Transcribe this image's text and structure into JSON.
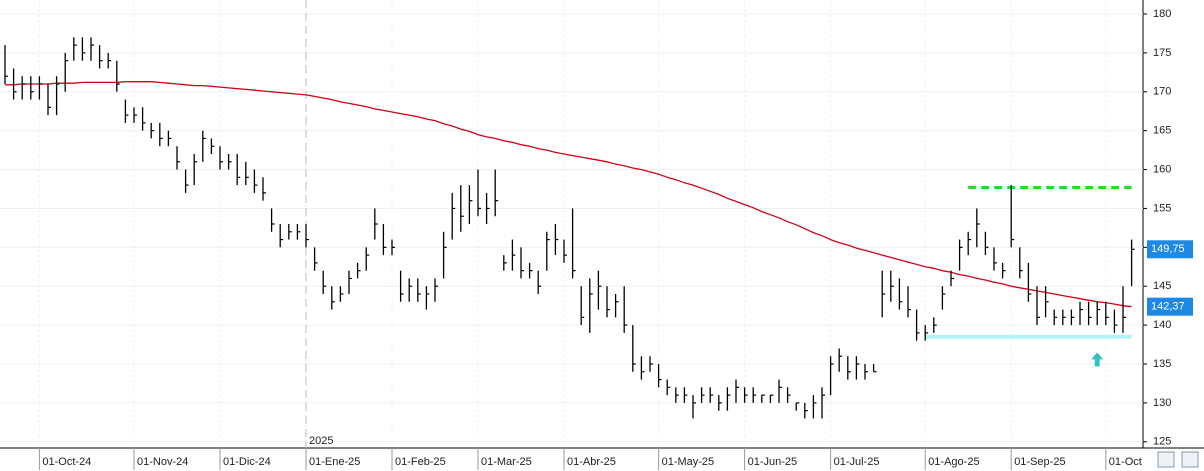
{
  "chart_data": {
    "type": "ohlc",
    "categories": [
      null,
      null,
      null,
      null,
      "01-Oct-24",
      null,
      null,
      null,
      null,
      null,
      null,
      null,
      null,
      null,
      null,
      "01-Nov-24",
      null,
      null,
      null,
      null,
      null,
      null,
      null,
      null,
      null,
      "01-Dic-24",
      null,
      null,
      null,
      null,
      null,
      null,
      null,
      null,
      null,
      "01-Ene-25",
      null,
      null,
      null,
      null,
      null,
      null,
      null,
      null,
      null,
      "01-Feb-25",
      null,
      null,
      null,
      null,
      null,
      null,
      null,
      null,
      null,
      "01-Mar-25",
      null,
      null,
      null,
      null,
      null,
      null,
      null,
      null,
      null,
      "01-Abr-25",
      null,
      null,
      null,
      null,
      null,
      null,
      null,
      null,
      null,
      null,
      "01-May-25",
      null,
      null,
      null,
      null,
      null,
      null,
      null,
      null,
      null,
      "01-Jun-25",
      null,
      null,
      null,
      null,
      null,
      null,
      null,
      null,
      null,
      "01-Jul-25",
      null,
      null,
      null,
      null,
      null,
      null,
      null,
      null,
      null,
      null,
      "01-Ago-25",
      null,
      null,
      null,
      null,
      null,
      null,
      null,
      null,
      null,
      "01-Sep-25",
      null,
      null,
      null,
      null,
      null,
      null,
      null,
      null,
      null,
      null,
      "01-Oct",
      null,
      null,
      null
    ],
    "bars": {
      "color": "#000000",
      "high": [
        176,
        173,
        172,
        172,
        172,
        171,
        172,
        175,
        177,
        177,
        177,
        176,
        175,
        174,
        169,
        168,
        168,
        166,
        166,
        165,
        163,
        160,
        162,
        165,
        164,
        163,
        162,
        162,
        161,
        160,
        159,
        155,
        153,
        153,
        153,
        153,
        150,
        147,
        145,
        145,
        147,
        148,
        150,
        155,
        153,
        151,
        147,
        146,
        146,
        145,
        146,
        152,
        157,
        158,
        158,
        160,
        157,
        160,
        149,
        151,
        150,
        148,
        147,
        152,
        153,
        151,
        155,
        145,
        146,
        147,
        145,
        144,
        145,
        140,
        136,
        136,
        135,
        133,
        132,
        132,
        131,
        132,
        132,
        131,
        132,
        133,
        132,
        132,
        131,
        131,
        133,
        132,
        130,
        130,
        131,
        132,
        136,
        137,
        136,
        136,
        135,
        135,
        147,
        147,
        146,
        145,
        142,
        140,
        141,
        145,
        147,
        151,
        152,
        155,
        152,
        150,
        148,
        158,
        150,
        148,
        145,
        145,
        142,
        142,
        142,
        143,
        143,
        143,
        143,
        142,
        145,
        151
      ],
      "low": [
        171,
        169,
        169,
        169,
        169,
        167,
        167,
        170,
        174,
        174,
        174,
        173,
        173,
        170,
        166,
        166,
        165,
        164,
        163,
        163,
        160,
        157,
        158,
        161,
        162,
        160,
        160,
        158,
        158,
        157,
        156,
        152,
        150,
        151,
        151,
        150,
        147,
        144,
        142,
        143,
        144,
        146,
        147,
        151,
        149,
        149,
        143,
        143,
        143,
        142,
        143,
        146,
        151,
        152,
        153,
        154,
        153,
        154,
        147,
        147,
        146,
        146,
        144,
        147,
        149,
        148,
        146,
        140,
        139,
        142,
        141,
        141,
        139,
        134,
        133,
        134,
        132,
        131,
        130,
        130,
        128,
        130,
        130,
        129,
        129,
        130,
        130,
        130,
        130,
        130,
        130,
        130,
        129,
        128,
        128,
        128,
        131,
        134,
        133,
        133,
        133,
        134,
        141,
        143,
        142,
        141,
        138,
        138,
        139,
        142,
        145,
        147,
        149,
        150,
        149,
        147,
        146,
        150,
        146,
        143,
        140,
        141,
        140,
        140,
        140,
        140,
        140,
        140,
        140,
        139,
        139,
        145
      ],
      "close": [
        172,
        170,
        171,
        170,
        171,
        168,
        171,
        174,
        176,
        175,
        176,
        174,
        174,
        171,
        167,
        167,
        166,
        165,
        164,
        164,
        161,
        158,
        161,
        164,
        163,
        161,
        161,
        159,
        159,
        158,
        157,
        153,
        151,
        152,
        152,
        151,
        148,
        145,
        143,
        144,
        146,
        147,
        149,
        153,
        150,
        150,
        144,
        145,
        144,
        144,
        145,
        150,
        155,
        154,
        156,
        155,
        155,
        156,
        148,
        149,
        147,
        147,
        145,
        151,
        151,
        149,
        147,
        141,
        144,
        145,
        142,
        143,
        140,
        135,
        134,
        135,
        133,
        132,
        131,
        131,
        130,
        131,
        131,
        130,
        131,
        132,
        131,
        131,
        131,
        131,
        132,
        131,
        130,
        129,
        130,
        131,
        135,
        136,
        134,
        135,
        134,
        134,
        144,
        145,
        143,
        142,
        139,
        139,
        140,
        144,
        146,
        150,
        151,
        153,
        150,
        148,
        147,
        151,
        147,
        144,
        141,
        143,
        141,
        141,
        141,
        142,
        141,
        142,
        141,
        140,
        141,
        149.75
      ],
      "last_label": "149,75",
      "label_color": "#1e88e5"
    },
    "average": {
      "color": "#d0021b",
      "values": [
        170.9,
        170.9,
        171,
        171,
        171,
        171,
        171.1,
        171.1,
        171.1,
        171.2,
        171.2,
        171.2,
        171.2,
        171.2,
        171.3,
        171.3,
        171.3,
        171.3,
        171.2,
        171.1,
        171,
        170.9,
        170.8,
        170.8,
        170.7,
        170.6,
        170.5,
        170.4,
        170.3,
        170.2,
        170.1,
        170,
        169.9,
        169.8,
        169.7,
        169.6,
        169.4,
        169.2,
        169,
        168.7,
        168.5,
        168.3,
        168.1,
        167.8,
        167.6,
        167.4,
        167.2,
        167,
        166.8,
        166.5,
        166.3,
        165.9,
        165.6,
        165.2,
        164.9,
        164.5,
        164.2,
        164,
        163.7,
        163.5,
        163.2,
        163,
        162.7,
        162.5,
        162.2,
        162,
        161.8,
        161.6,
        161.4,
        161.2,
        161,
        160.7,
        160.5,
        160.2,
        160,
        159.7,
        159.4,
        159,
        158.7,
        158.3,
        158,
        157.6,
        157.2,
        156.8,
        156.3,
        155.9,
        155.5,
        155.1,
        154.6,
        154.2,
        153.8,
        153.3,
        152.9,
        152.4,
        151.9,
        151.5,
        151,
        150.6,
        150.3,
        149.9,
        149.6,
        149.3,
        149,
        148.7,
        148.4,
        148.1,
        147.8,
        147.5,
        147.3,
        147,
        146.8,
        146.5,
        146.3,
        146,
        145.8,
        145.5,
        145.3,
        145,
        144.8,
        144.6,
        144.4,
        144.2,
        144,
        143.8,
        143.6,
        143.4,
        143.2,
        143,
        142.9,
        142.7,
        142.5,
        142.37
      ],
      "last_label": "142,37",
      "label_color": "#1e88e5"
    },
    "levels": [
      {
        "value": 157.7,
        "color": "#22dd22",
        "dashed": true,
        "from": 112,
        "to": 131
      },
      {
        "value": 138.5,
        "color": "#b3f3f3",
        "dashed": false,
        "from": 107,
        "to": 131
      }
    ],
    "arrow": {
      "index": 127,
      "value": 136.5,
      "color": "#2ec4c4"
    },
    "year_marker": {
      "label": "2025",
      "index": 35
    },
    "ylim": [
      124.2,
      181.8
    ],
    "yticks": [
      125,
      130,
      135,
      140,
      145,
      150,
      155,
      160,
      165,
      170,
      175,
      180
    ],
    "grid": true
  }
}
